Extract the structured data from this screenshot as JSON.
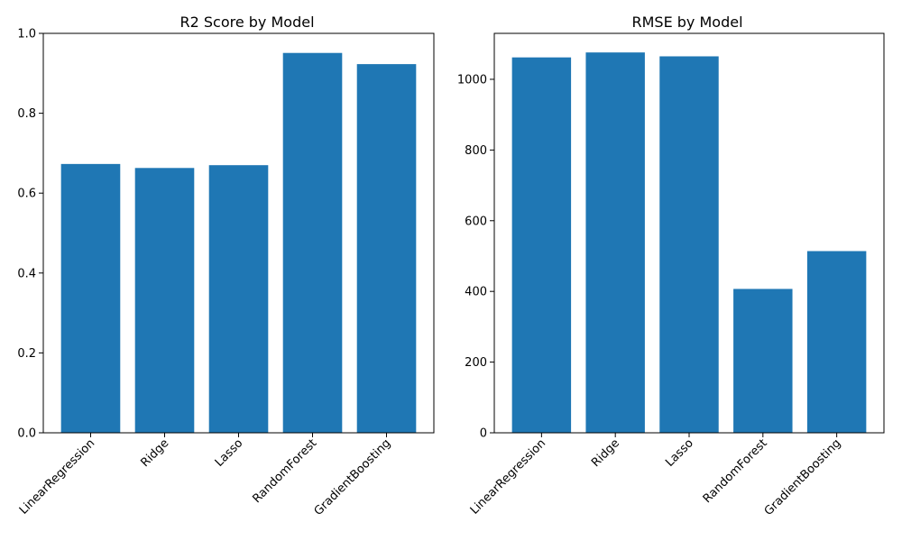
{
  "colors": {
    "bar": "#1f77b4"
  },
  "chart_data": [
    {
      "type": "bar",
      "title": "R2 Score by Model",
      "xlabel": "",
      "ylabel": "",
      "categories": [
        "LinearRegression",
        "Ridge",
        "Lasso",
        "RandomForest",
        "GradientBoosting"
      ],
      "values": [
        0.673,
        0.663,
        0.67,
        0.951,
        0.923
      ],
      "ylim": [
        0,
        1.0
      ],
      "yticks": [
        "0.0",
        "0.2",
        "0.4",
        "0.6",
        "0.8",
        "1.0"
      ],
      "ytick_values": [
        0,
        0.2,
        0.4,
        0.6,
        0.8,
        1.0
      ],
      "grid": false,
      "xtick_rotation_deg": 45
    },
    {
      "type": "bar",
      "title": "RMSE by Model",
      "xlabel": "",
      "ylabel": "",
      "categories": [
        "LinearRegression",
        "Ridge",
        "Lasso",
        "RandomForest",
        "GradientBoosting"
      ],
      "values": [
        1062,
        1076,
        1065,
        407,
        514
      ],
      "ylim": [
        0,
        1130
      ],
      "yticks": [
        "0",
        "200",
        "400",
        "600",
        "800",
        "1000"
      ],
      "ytick_values": [
        0,
        200,
        400,
        600,
        800,
        1000
      ],
      "grid": false,
      "xtick_rotation_deg": 45
    }
  ]
}
